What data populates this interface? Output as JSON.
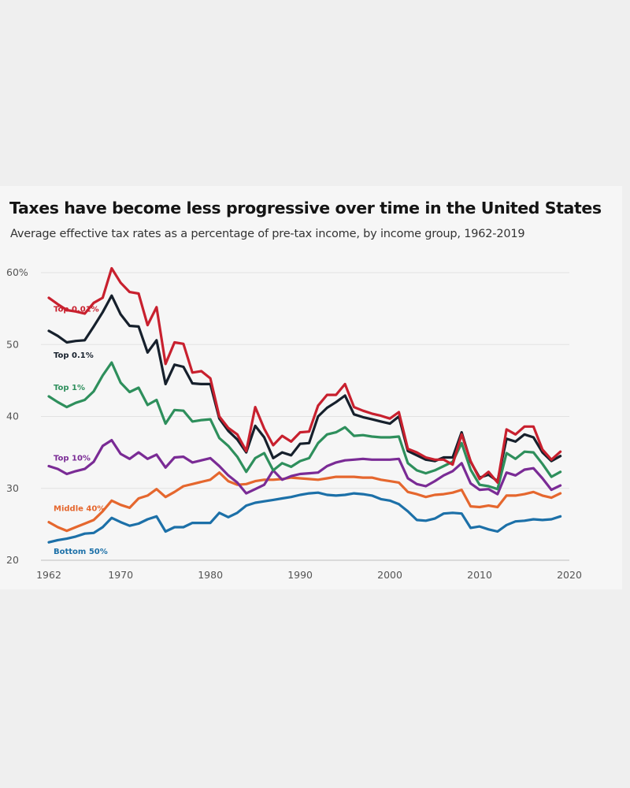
{
  "chart_data": {
    "type": "line",
    "title": "Taxes have become less progressive over time in the United States",
    "subtitle": "Average effective tax rates as a percentage of pre-tax income, by income group, 1962-2019",
    "xlabel": "",
    "ylabel": "",
    "xlim": [
      1962,
      2020
    ],
    "ylim": [
      20,
      60
    ],
    "x_ticks": [
      1962,
      1970,
      1980,
      1990,
      2000,
      2010,
      2020
    ],
    "y_ticks": [
      20,
      30,
      40,
      50,
      60
    ],
    "y_tick_labels": [
      "20",
      "30",
      "40",
      "50",
      "60%"
    ],
    "grid": "horizontal",
    "x": [
      1962,
      1963,
      1964,
      1965,
      1966,
      1967,
      1968,
      1969,
      1970,
      1971,
      1972,
      1973,
      1974,
      1975,
      1976,
      1977,
      1978,
      1979,
      1980,
      1981,
      1982,
      1983,
      1984,
      1985,
      1986,
      1987,
      1988,
      1989,
      1990,
      1991,
      1992,
      1993,
      1994,
      1995,
      1996,
      1997,
      1998,
      1999,
      2000,
      2001,
      2002,
      2003,
      2004,
      2005,
      2006,
      2007,
      2008,
      2009,
      2010,
      2011,
      2012,
      2013,
      2014,
      2015,
      2016,
      2017,
      2018,
      2019
    ],
    "series": [
      {
        "name": "Top 0.01%",
        "color": "#c8202e",
        "values": [
          56.5,
          55.6,
          54.8,
          54.6,
          54.3,
          55.8,
          56.5,
          60.6,
          58.6,
          57.3,
          57.1,
          52.7,
          55.2,
          47.3,
          50.3,
          50.1,
          46.1,
          46.3,
          45.3,
          40.0,
          38.4,
          37.5,
          35.2,
          41.3,
          38.3,
          36.0,
          37.3,
          36.5,
          37.8,
          37.9,
          41.5,
          43.0,
          43.0,
          44.5,
          41.3,
          40.8,
          40.4,
          40.1,
          39.7,
          40.6,
          35.5,
          35.0,
          34.3,
          34.0,
          34.0,
          33.3,
          37.5,
          33.8,
          31.3,
          32.3,
          30.8,
          38.2,
          37.5,
          38.6,
          38.6,
          35.4,
          34.0,
          35.1
        ]
      },
      {
        "name": "Top 0.1%",
        "color": "#16202c",
        "values": [
          51.9,
          51.2,
          50.3,
          50.5,
          50.6,
          52.5,
          54.5,
          56.8,
          54.2,
          52.6,
          52.5,
          48.9,
          50.6,
          44.5,
          47.2,
          46.9,
          44.6,
          44.5,
          44.5,
          39.7,
          38.0,
          36.8,
          35.0,
          38.7,
          37.1,
          34.2,
          35.0,
          34.6,
          36.2,
          36.3,
          40.0,
          41.2,
          42.0,
          42.9,
          40.3,
          39.9,
          39.6,
          39.3,
          39.0,
          40.0,
          35.2,
          34.6,
          34.0,
          33.8,
          34.3,
          34.3,
          37.8,
          33.7,
          31.5,
          31.9,
          31.0,
          36.9,
          36.5,
          37.5,
          37.1,
          35.0,
          33.8,
          34.5
        ]
      },
      {
        "name": "Top 1%",
        "color": "#2e8f5c",
        "values": [
          42.8,
          42.0,
          41.3,
          41.9,
          42.3,
          43.5,
          45.7,
          47.5,
          44.7,
          43.4,
          44.0,
          41.6,
          42.3,
          39.0,
          40.9,
          40.8,
          39.3,
          39.5,
          39.6,
          37.0,
          35.9,
          34.4,
          32.3,
          34.2,
          34.9,
          32.5,
          33.5,
          33.0,
          33.8,
          34.2,
          36.3,
          37.5,
          37.8,
          38.5,
          37.3,
          37.4,
          37.2,
          37.1,
          37.1,
          37.2,
          33.5,
          32.5,
          32.1,
          32.5,
          33.1,
          33.7,
          36.3,
          32.6,
          30.5,
          30.3,
          29.9,
          34.9,
          34.1,
          35.1,
          35.0,
          33.4,
          31.6,
          32.3
        ]
      },
      {
        "name": "Top 10%",
        "color": "#7a2b95",
        "values": [
          33.1,
          32.7,
          32.0,
          32.4,
          32.7,
          33.7,
          35.9,
          36.7,
          34.8,
          34.1,
          35.0,
          34.1,
          34.7,
          32.9,
          34.3,
          34.4,
          33.6,
          33.9,
          34.2,
          33.1,
          31.8,
          30.8,
          29.3,
          29.9,
          30.5,
          32.5,
          31.2,
          31.7,
          32.0,
          32.1,
          32.2,
          33.1,
          33.6,
          33.9,
          34.0,
          34.1,
          34.0,
          34.0,
          34.0,
          34.1,
          31.4,
          30.6,
          30.3,
          31.0,
          31.8,
          32.4,
          33.5,
          30.7,
          29.8,
          29.9,
          29.2,
          32.2,
          31.8,
          32.6,
          32.8,
          31.4,
          29.8,
          30.4
        ]
      },
      {
        "name": "Middle 40%",
        "color": "#e5672e",
        "values": [
          25.3,
          24.6,
          24.1,
          24.6,
          25.1,
          25.6,
          26.8,
          28.3,
          27.7,
          27.3,
          28.6,
          29.0,
          29.9,
          28.8,
          29.5,
          30.3,
          30.6,
          30.9,
          31.2,
          32.2,
          31.0,
          30.5,
          30.6,
          31.0,
          31.2,
          31.2,
          31.3,
          31.5,
          31.4,
          31.3,
          31.2,
          31.4,
          31.6,
          31.6,
          31.6,
          31.5,
          31.5,
          31.2,
          31.0,
          30.8,
          29.5,
          29.2,
          28.8,
          29.1,
          29.2,
          29.4,
          29.8,
          27.5,
          27.4,
          27.6,
          27.4,
          29.0,
          29.0,
          29.2,
          29.5,
          29.0,
          28.7,
          29.3
        ]
      },
      {
        "name": "Bottom 50%",
        "color": "#1c70a8",
        "values": [
          22.5,
          22.8,
          23.0,
          23.3,
          23.7,
          23.8,
          24.6,
          25.9,
          25.3,
          24.8,
          25.1,
          25.7,
          26.1,
          24.0,
          24.6,
          24.6,
          25.2,
          25.2,
          25.2,
          26.6,
          26.0,
          26.6,
          27.6,
          28.0,
          28.2,
          28.4,
          28.6,
          28.8,
          29.1,
          29.3,
          29.4,
          29.1,
          29.0,
          29.1,
          29.3,
          29.2,
          29.0,
          28.5,
          28.3,
          27.8,
          26.8,
          25.6,
          25.5,
          25.8,
          26.5,
          26.6,
          26.5,
          24.5,
          24.7,
          24.3,
          24.0,
          24.9,
          25.4,
          25.5,
          25.7,
          25.6,
          25.7,
          26.1
        ]
      }
    ]
  }
}
